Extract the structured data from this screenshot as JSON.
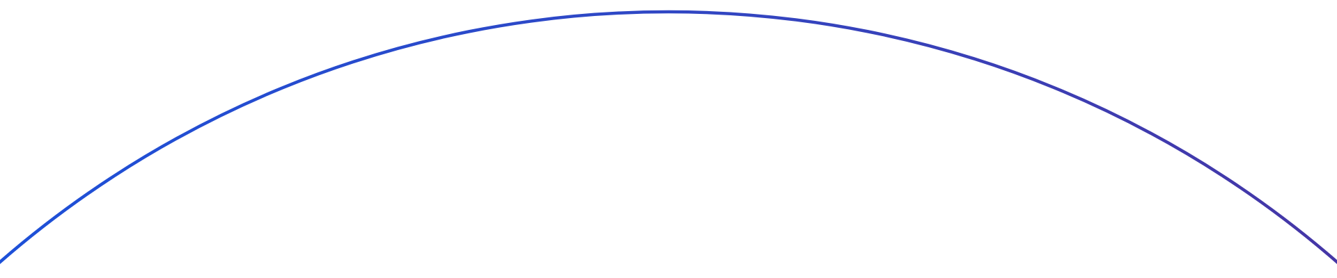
{
  "arc": {
    "gradient_start_color": "#1d50d8",
    "gradient_mid_color": "#3047c4",
    "gradient_end_color": "#4536a6"
  },
  "background_color": "#ffffff"
}
